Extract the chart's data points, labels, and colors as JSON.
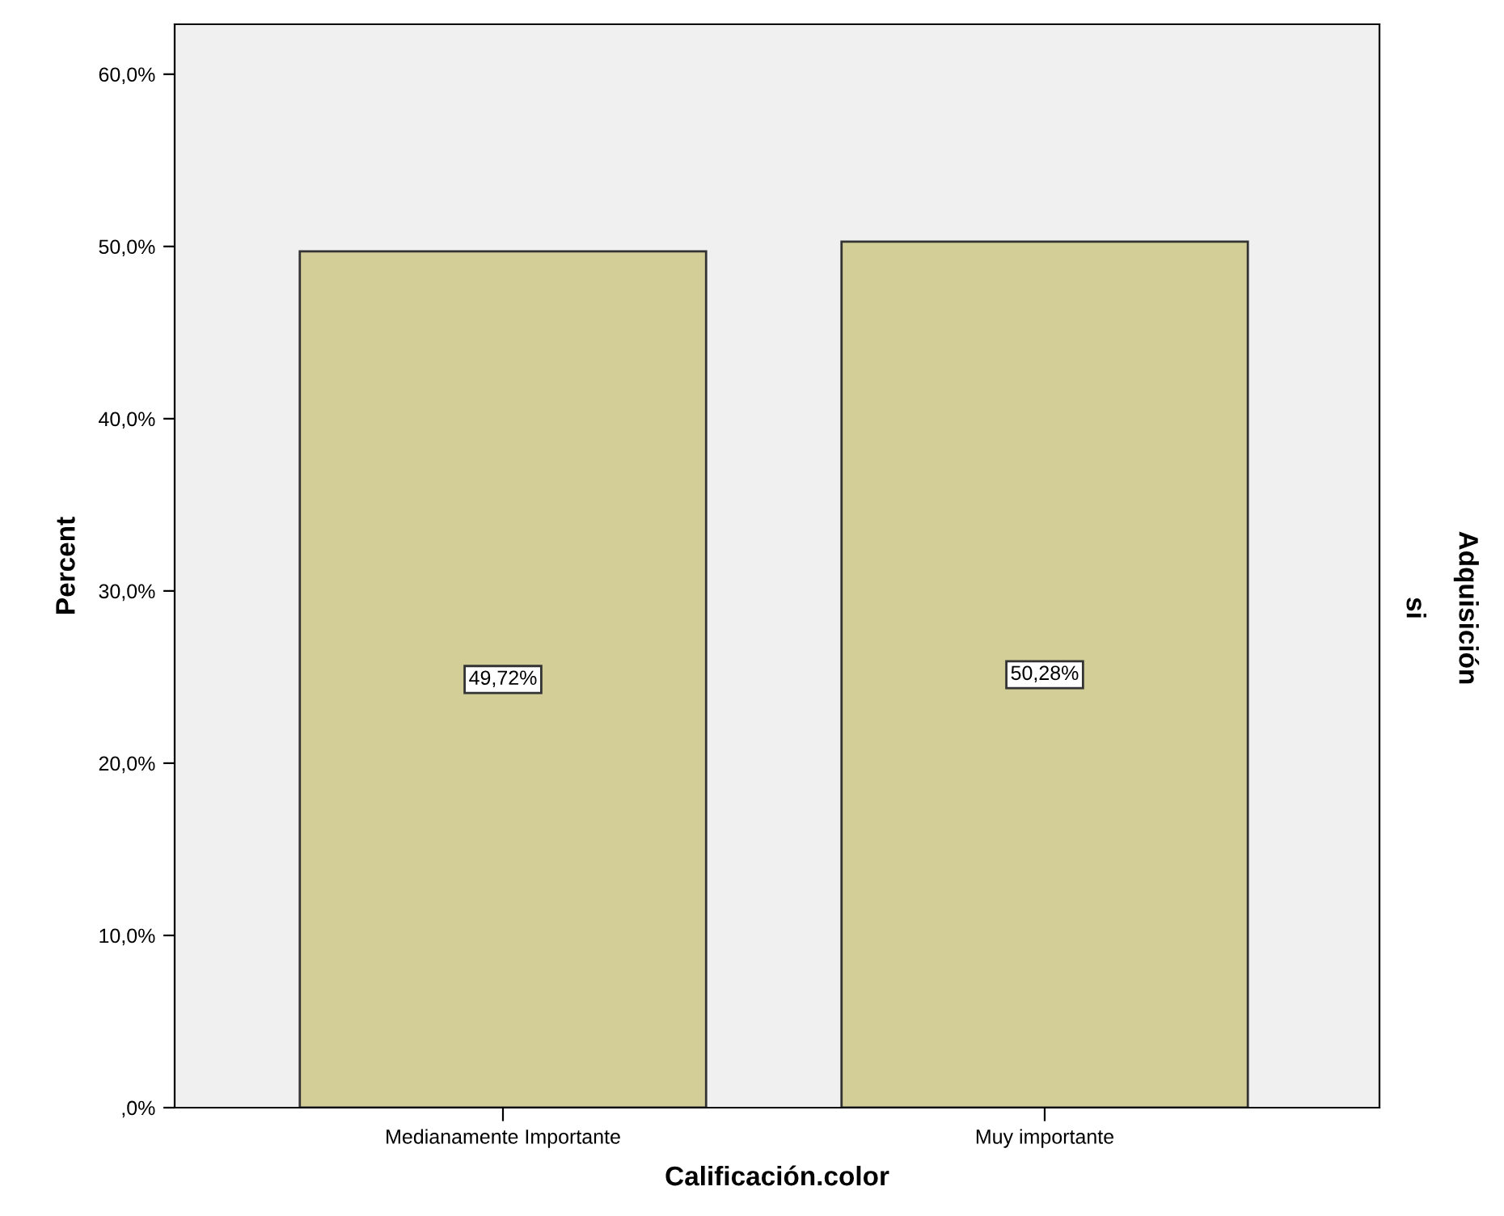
{
  "chart_data": {
    "type": "bar",
    "xlabel": "Calificación.color",
    "ylabel": "Percent",
    "y2label": "Adquisición",
    "annotations": [
      "si"
    ],
    "categories": [
      "Medianamente Importante",
      "Muy importante"
    ],
    "values": [
      49.72,
      50.28
    ],
    "color": "#d3ce97",
    "value_labels": [
      "49,72%",
      "50,28%"
    ],
    "ylim": [
      0,
      62.9
    ],
    "yticks": [
      {
        "value": 0,
        "label": ",0%"
      },
      {
        "value": 10,
        "label": "10,0%"
      },
      {
        "value": 20,
        "label": "20,0%"
      },
      {
        "value": 30,
        "label": "30,0%"
      },
      {
        "value": 40,
        "label": "40,0%"
      },
      {
        "value": 50,
        "label": "50,0%"
      },
      {
        "value": 60,
        "label": "60,0%"
      }
    ],
    "grid": false,
    "legend": false
  }
}
